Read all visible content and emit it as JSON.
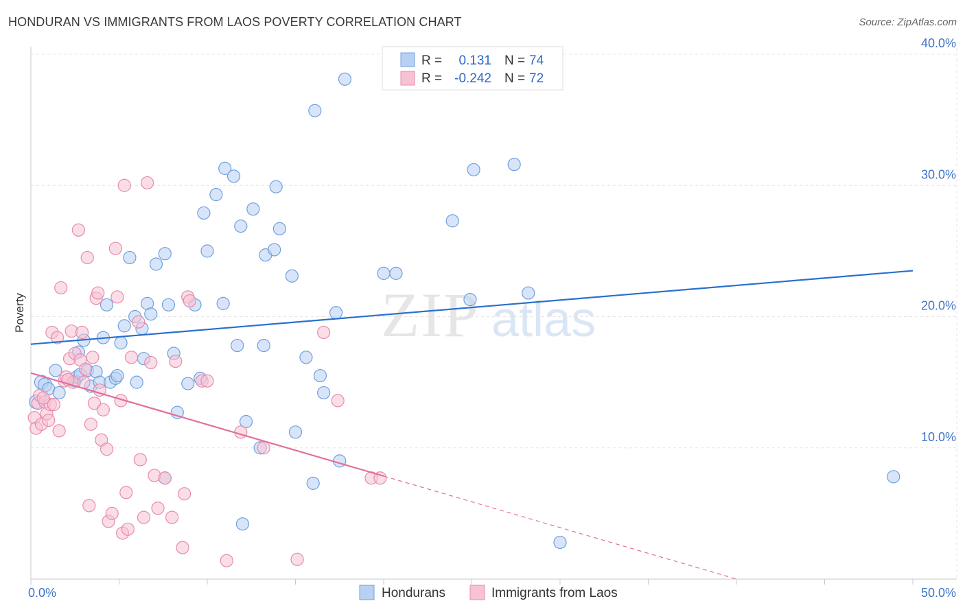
{
  "title": "HONDURAN VS IMMIGRANTS FROM LAOS POVERTY CORRELATION CHART",
  "source": "Source: ZipAtlas.com",
  "watermark": {
    "zip": "ZIP",
    "atlas": "atlas"
  },
  "chart_data": {
    "type": "scatter",
    "title": "HONDURAN VS IMMIGRANTS FROM LAOS POVERTY CORRELATION CHART",
    "xlabel": "",
    "ylabel": "Poverty",
    "xlim": [
      0,
      50
    ],
    "ylim": [
      0,
      40
    ],
    "x_tick_labels": [
      {
        "value": 0,
        "label": "0.0%"
      },
      {
        "value": 50,
        "label": "50.0%"
      }
    ],
    "y_tick_labels": [
      {
        "value": 10,
        "label": "10.0%"
      },
      {
        "value": 20,
        "label": "20.0%"
      },
      {
        "value": 30,
        "label": "30.0%"
      },
      {
        "value": 40,
        "label": "40.0%"
      }
    ],
    "grid": true,
    "legend_position": "top-center",
    "stats": [
      {
        "r_label": "R =",
        "r_value": "0.131",
        "n_label": "N =",
        "n_value": "74"
      },
      {
        "r_label": "R =",
        "r_value": "-0.242",
        "n_label": "N =",
        "n_value": "72"
      }
    ],
    "series": [
      {
        "name": "Hondurans",
        "color": "#6f9fe0",
        "fill": "#b8d0f2",
        "trend_color": "#2a6fd0",
        "trend": {
          "x0": 0,
          "y0": 17.9,
          "x1": 50,
          "y1": 23.5,
          "dashed_from": null
        },
        "points": [
          [
            0.3,
            13.5
          ],
          [
            0.6,
            15.0
          ],
          [
            0.8,
            14.8
          ],
          [
            1.0,
            14.5
          ],
          [
            1.4,
            15.9
          ],
          [
            1.6,
            14.2
          ],
          [
            2.5,
            15.1
          ],
          [
            2.6,
            15.4
          ],
          [
            2.7,
            17.3
          ],
          [
            2.8,
            15.6
          ],
          [
            3.0,
            18.2
          ],
          [
            3.2,
            15.9
          ],
          [
            3.4,
            14.7
          ],
          [
            3.7,
            15.8
          ],
          [
            3.9,
            15.0
          ],
          [
            4.1,
            18.4
          ],
          [
            4.3,
            20.9
          ],
          [
            4.5,
            15.0
          ],
          [
            4.8,
            15.3
          ],
          [
            4.9,
            15.5
          ],
          [
            5.1,
            18.0
          ],
          [
            5.3,
            19.3
          ],
          [
            5.6,
            24.5
          ],
          [
            5.9,
            20.0
          ],
          [
            6.0,
            15.0
          ],
          [
            6.3,
            19.1
          ],
          [
            6.4,
            16.8
          ],
          [
            6.6,
            21.0
          ],
          [
            6.8,
            20.2
          ],
          [
            7.1,
            24.0
          ],
          [
            7.6,
            24.8
          ],
          [
            7.8,
            20.9
          ],
          [
            8.1,
            17.2
          ],
          [
            8.3,
            12.7
          ],
          [
            8.9,
            14.9
          ],
          [
            9.3,
            20.9
          ],
          [
            9.6,
            15.3
          ],
          [
            9.8,
            27.9
          ],
          [
            10.0,
            25.0
          ],
          [
            10.5,
            29.3
          ],
          [
            10.9,
            21.0
          ],
          [
            11.0,
            31.3
          ],
          [
            11.5,
            30.7
          ],
          [
            11.7,
            17.8
          ],
          [
            11.9,
            26.9
          ],
          [
            12.2,
            12.0
          ],
          [
            12.6,
            28.2
          ],
          [
            13.0,
            10.0
          ],
          [
            13.2,
            17.8
          ],
          [
            13.3,
            24.7
          ],
          [
            13.8,
            25.1
          ],
          [
            13.9,
            29.9
          ],
          [
            14.1,
            26.7
          ],
          [
            14.8,
            23.1
          ],
          [
            15.0,
            11.2
          ],
          [
            15.6,
            16.9
          ],
          [
            16.0,
            7.3
          ],
          [
            16.1,
            35.7
          ],
          [
            16.4,
            15.5
          ],
          [
            16.6,
            14.2
          ],
          [
            17.3,
            20.3
          ],
          [
            17.5,
            9.0
          ],
          [
            17.8,
            38.1
          ],
          [
            20.0,
            23.3
          ],
          [
            20.7,
            23.3
          ],
          [
            23.9,
            27.3
          ],
          [
            24.9,
            21.3
          ],
          [
            25.1,
            31.2
          ],
          [
            27.4,
            31.6
          ],
          [
            28.2,
            21.8
          ],
          [
            7.6,
            7.7
          ],
          [
            12.0,
            4.2
          ],
          [
            30.0,
            2.8
          ],
          [
            48.9,
            7.8
          ]
        ]
      },
      {
        "name": "Immigrants from Laos",
        "color": "#e98aab",
        "fill": "#f6c3d4",
        "trend_color": "#e0709a",
        "trend": {
          "x0": 0,
          "y0": 15.7,
          "x1": 40,
          "y1": 0,
          "dashed_from": 20
        },
        "points": [
          [
            0.2,
            12.3
          ],
          [
            0.3,
            11.5
          ],
          [
            0.4,
            13.4
          ],
          [
            0.5,
            14.0
          ],
          [
            0.6,
            11.8
          ],
          [
            0.8,
            13.5
          ],
          [
            0.9,
            12.6
          ],
          [
            1.0,
            12.1
          ],
          [
            1.1,
            13.3
          ],
          [
            1.2,
            18.8
          ],
          [
            1.3,
            13.3
          ],
          [
            1.5,
            18.4
          ],
          [
            1.6,
            11.3
          ],
          [
            1.7,
            22.2
          ],
          [
            1.9,
            15.1
          ],
          [
            2.0,
            15.4
          ],
          [
            2.2,
            16.8
          ],
          [
            2.3,
            18.9
          ],
          [
            2.4,
            15.0
          ],
          [
            2.5,
            17.2
          ],
          [
            2.7,
            26.6
          ],
          [
            2.8,
            16.7
          ],
          [
            2.9,
            18.8
          ],
          [
            3.0,
            15.0
          ],
          [
            3.1,
            16.0
          ],
          [
            3.2,
            24.5
          ],
          [
            3.3,
            5.6
          ],
          [
            3.4,
            11.8
          ],
          [
            3.5,
            16.9
          ],
          [
            3.6,
            13.4
          ],
          [
            3.7,
            21.4
          ],
          [
            3.8,
            21.8
          ],
          [
            3.9,
            14.4
          ],
          [
            4.0,
            10.6
          ],
          [
            4.1,
            12.9
          ],
          [
            4.3,
            9.9
          ],
          [
            4.4,
            4.4
          ],
          [
            4.6,
            5.0
          ],
          [
            4.8,
            25.2
          ],
          [
            4.9,
            21.5
          ],
          [
            5.1,
            13.6
          ],
          [
            5.2,
            3.5
          ],
          [
            5.3,
            30.0
          ],
          [
            5.4,
            6.6
          ],
          [
            5.5,
            3.8
          ],
          [
            5.7,
            16.9
          ],
          [
            6.1,
            19.6
          ],
          [
            6.2,
            9.1
          ],
          [
            6.4,
            4.7
          ],
          [
            6.6,
            30.2
          ],
          [
            6.8,
            16.5
          ],
          [
            7.0,
            7.9
          ],
          [
            7.2,
            5.4
          ],
          [
            7.6,
            7.7
          ],
          [
            8.0,
            4.7
          ],
          [
            8.2,
            16.6
          ],
          [
            8.6,
            2.4
          ],
          [
            8.7,
            6.5
          ],
          [
            8.9,
            21.5
          ],
          [
            9.0,
            21.2
          ],
          [
            9.7,
            15.1
          ],
          [
            10.0,
            15.1
          ],
          [
            11.1,
            1.4
          ],
          [
            11.9,
            11.2
          ],
          [
            13.2,
            10.0
          ],
          [
            15.1,
            1.5
          ],
          [
            16.6,
            18.8
          ],
          [
            17.4,
            13.6
          ],
          [
            19.3,
            7.7
          ],
          [
            19.8,
            7.7
          ],
          [
            2.1,
            15.2
          ],
          [
            0.7,
            13.8
          ]
        ]
      }
    ]
  },
  "legend": {
    "items": [
      {
        "label": "Hondurans"
      },
      {
        "label": "Immigrants from Laos"
      }
    ]
  }
}
